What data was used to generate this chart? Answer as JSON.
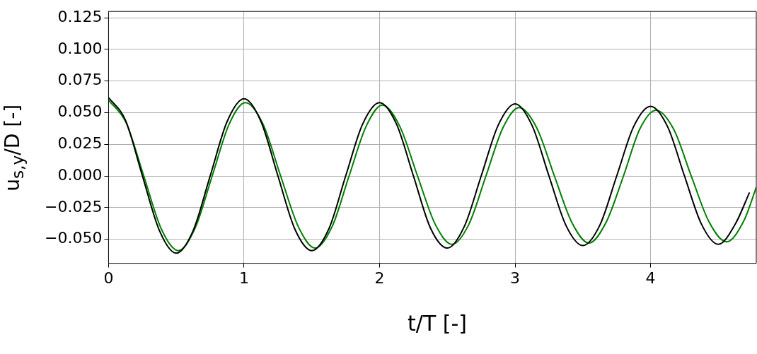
{
  "chart_data": {
    "type": "line",
    "xlabel": "t/T [-]",
    "ylabel": "u$_{s,y}$/D [-]",
    "xlim": [
      0,
      4.78
    ],
    "xticks": [
      0,
      1,
      2,
      3,
      4
    ],
    "ylim": [
      -0.069,
      0.13
    ],
    "yticks": [
      {
        "value": -0.05,
        "label": "−0.050"
      },
      {
        "value": -0.025,
        "label": "−0.025"
      },
      {
        "value": 0,
        "label": "0.000"
      },
      {
        "value": 0.025,
        "label": "0.025"
      },
      {
        "value": 0.05,
        "label": "0.050"
      },
      {
        "value": 0.075,
        "label": "0.075"
      },
      {
        "value": 0.1,
        "label": "0.100"
      },
      {
        "value": 0.125,
        "label": "0.125"
      }
    ],
    "grid": true,
    "legend": false,
    "marker": "none",
    "line_style": "solid",
    "series": [
      {
        "color": "#000000",
        "x": [
          0,
          0.125,
          0.25,
          0.375,
          0.5,
          0.625,
          0.75,
          0.875,
          1,
          1.125,
          1.25,
          1.375,
          1.5,
          1.625,
          1.75,
          1.875,
          2,
          2.125,
          2.25,
          2.375,
          2.5,
          2.625,
          2.75,
          2.875,
          3,
          3.125,
          3.25,
          3.375,
          3.5,
          3.625,
          3.75,
          3.875,
          4,
          4.125,
          4.25,
          4.375,
          4.5,
          4.625,
          4.73
        ],
        "values": [
          0.062,
          0.044,
          0,
          -0.043,
          -0.061,
          -0.043,
          0,
          0.043,
          0.061,
          0.043,
          0,
          -0.042,
          -0.059,
          -0.042,
          0,
          0.041,
          0.058,
          0.041,
          0,
          -0.041,
          -0.057,
          -0.04,
          0,
          0.04,
          0.057,
          0.04,
          0,
          -0.039,
          -0.055,
          -0.039,
          0,
          0.039,
          0.055,
          0.039,
          0,
          -0.038,
          -0.054,
          -0.038,
          -0.013
        ]
      },
      {
        "color": "#008000",
        "x": [
          0,
          0.13,
          0.26,
          0.39,
          0.515,
          0.64,
          0.765,
          0.89,
          1.01,
          1.14,
          1.27,
          1.4,
          1.525,
          1.65,
          1.775,
          1.9,
          2.02,
          2.15,
          2.28,
          2.41,
          2.535,
          2.66,
          2.785,
          2.91,
          3.03,
          3.16,
          3.29,
          3.42,
          3.545,
          3.67,
          3.8,
          3.92,
          4.04,
          4.17,
          4.3,
          4.43,
          4.56,
          4.69,
          4.78
        ],
        "values": [
          0.06,
          0.042,
          0,
          -0.042,
          -0.059,
          -0.041,
          0,
          0.041,
          0.058,
          0.041,
          0,
          -0.04,
          -0.057,
          -0.04,
          0,
          0.039,
          0.056,
          0.039,
          0,
          -0.038,
          -0.054,
          -0.038,
          0,
          0.038,
          0.054,
          0.038,
          0,
          -0.037,
          -0.053,
          -0.037,
          0,
          0.037,
          0.052,
          0.037,
          0,
          -0.036,
          -0.052,
          -0.035,
          -0.009
        ]
      }
    ]
  }
}
